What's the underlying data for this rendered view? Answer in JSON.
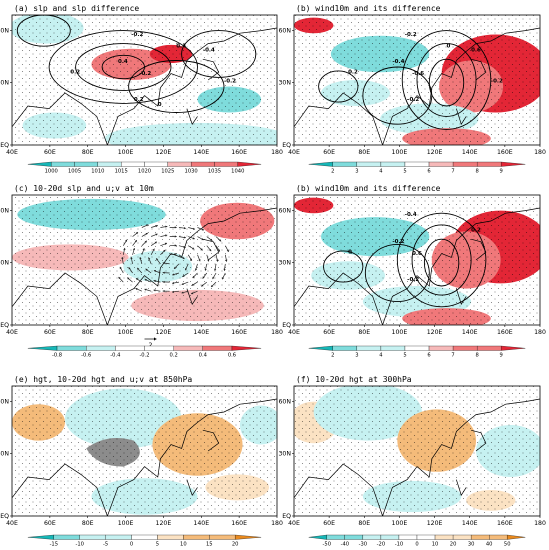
{
  "colors": {
    "red_strong": "#e32636",
    "red_mid": "#f0787a",
    "red_light": "#f6b9b9",
    "cyan_strong": "#16b7b7",
    "cyan_mid": "#7fdcdc",
    "cyan_light": "#c6f1f1",
    "orange_strong": "#e8891e",
    "orange_mid": "#f4bb7a",
    "orange_light": "#fbe2c3",
    "gray_mask": "#8c8c8c",
    "contour": "#000000",
    "vector": "#222222"
  },
  "chart_data": [
    {
      "panel": "a",
      "type": "heatmap",
      "title": "(a)  slp  and  slp  difference",
      "x_ticks": [
        "40E",
        "60E",
        "80E",
        "100E",
        "120E",
        "140E",
        "160E",
        "180"
      ],
      "y_ticks": [
        "EQ",
        "30N",
        "60N"
      ],
      "contour_labels": [
        "-0.2",
        "0.4",
        "-0.2",
        "0.2",
        "-0.4",
        "0.2",
        "-0.2",
        "0.4",
        "0"
      ],
      "colorbar": {
        "levels": [
          "1000",
          "1005",
          "1010",
          "1015",
          "1020",
          "1025",
          "1030",
          "1035",
          "1040"
        ],
        "palette": "cyan-white-red"
      }
    },
    {
      "panel": "b",
      "type": "heatmap",
      "title": "(b)  wind10m  and  its  difference",
      "x_ticks": [
        "40E",
        "60E",
        "80E",
        "100E",
        "120E",
        "140E",
        "160E",
        "180"
      ],
      "y_ticks": [
        "EQ",
        "30N",
        "60N"
      ],
      "contour_labels": [
        "-0.2",
        "-0.4",
        "-0.6",
        "-0.2",
        "0.6",
        "0.2",
        "-0.2",
        "0"
      ],
      "colorbar": {
        "levels": [
          "2",
          "3",
          "4",
          "5",
          "6",
          "7",
          "8",
          "9"
        ],
        "palette": "cyan-white-red"
      }
    },
    {
      "panel": "c",
      "type": "heatmap",
      "title": "(c)  10-20d  slp  and  u;v  at  10m",
      "x_ticks": [
        "40E",
        "60E",
        "80E",
        "100E",
        "120E",
        "140E",
        "160E",
        "180"
      ],
      "y_ticks": [
        "EQ",
        "30N",
        "60N"
      ],
      "reference_vector": "2",
      "colorbar": {
        "levels": [
          "-0.8",
          "-0.6",
          "-0.4",
          "-0.2",
          "0.2",
          "0.4",
          "0.6"
        ],
        "palette": "cyan-white-red"
      }
    },
    {
      "panel": "d",
      "type": "heatmap",
      "title": "(b)  wind10m  and  its  difference",
      "x_ticks": [
        "40E",
        "60E",
        "80E",
        "100E",
        "120E",
        "140E",
        "160E",
        "180"
      ],
      "y_ticks": [
        "EQ",
        "30N",
        "60N"
      ],
      "contour_labels": [
        "-0.4",
        "-0.2",
        "0.6",
        "-0.2",
        "0.2",
        "0"
      ],
      "colorbar": {
        "levels": [
          "2",
          "3",
          "4",
          "5",
          "6",
          "7",
          "8",
          "9"
        ],
        "palette": "cyan-white-red"
      }
    },
    {
      "panel": "e",
      "type": "heatmap",
      "title": "(e)  hgt,  10-20d  hgt  and  u;v  at  850hPa",
      "x_ticks": [
        "40E",
        "60E",
        "80E",
        "100E",
        "120E",
        "140E",
        "160E",
        "180"
      ],
      "y_ticks": [
        "EQ",
        "30N",
        "60N"
      ],
      "colorbar": {
        "levels": [
          "-15",
          "-10",
          "-5",
          "0",
          "5",
          "10",
          "15",
          "20"
        ],
        "palette": "cyan-white-orange"
      }
    },
    {
      "panel": "f",
      "type": "heatmap",
      "title": "(f)  10-20d  hgt  at  300hPa",
      "x_ticks": [
        "40E",
        "60E",
        "80E",
        "100E",
        "120E",
        "140E",
        "160E",
        "180"
      ],
      "y_ticks": [
        "EQ",
        "30N",
        "60N"
      ],
      "colorbar": {
        "levels": [
          "-50",
          "-40",
          "-30",
          "-20",
          "-10",
          "0",
          "10",
          "20",
          "30",
          "40",
          "50"
        ],
        "palette": "cyan-white-orange"
      }
    }
  ]
}
